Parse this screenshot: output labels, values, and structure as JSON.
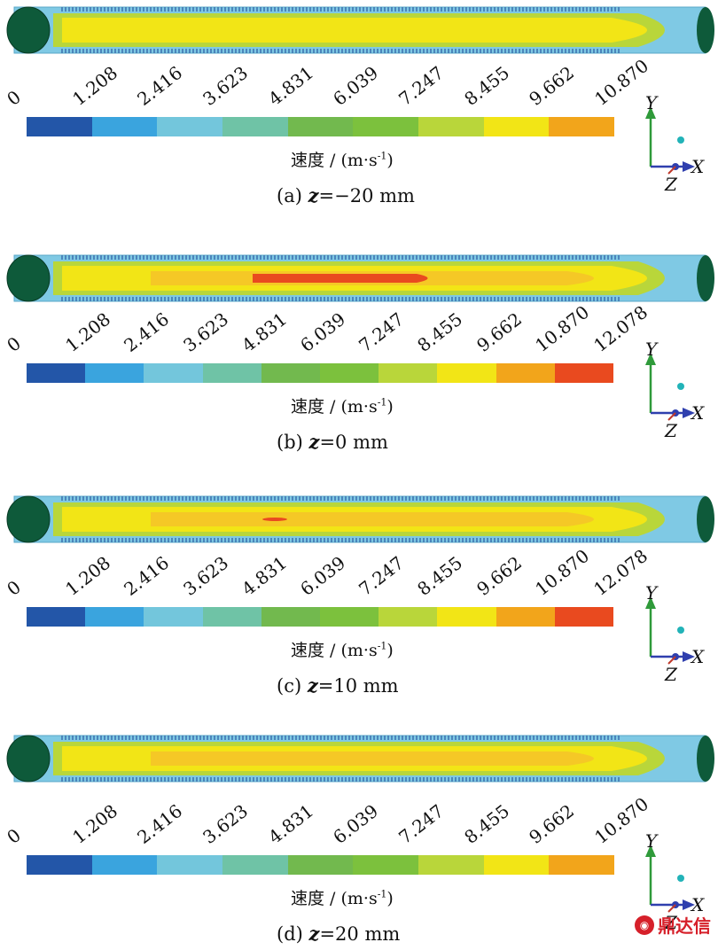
{
  "unit_label": "速度 / (m·s",
  "unit_sup": "-1",
  "unit_close": ")",
  "axes": {
    "x": "X",
    "y": "Y",
    "z": "Z"
  },
  "colors": {
    "c1": "#2356a8",
    "c2": "#3aa4de",
    "c3": "#73c6dc",
    "c4": "#6fc3a6",
    "c5": "#72b94e",
    "c6": "#7cc13d",
    "c7": "#b9d63a",
    "c8": "#f2e516",
    "c9": "#f2a51b",
    "c10": "#e94a1f"
  },
  "panels": [
    {
      "caption_prefix": "(a) ",
      "caption_var": "z",
      "caption_value": "=−20 mm",
      "ticks": [
        "0",
        "1.208",
        "2.416",
        "3.623",
        "4.831",
        "6.039",
        "7.247",
        "8.455",
        "9.662",
        "10.870"
      ],
      "hot_core": false
    },
    {
      "caption_prefix": "(b) ",
      "caption_var": "z",
      "caption_value": "=0 mm",
      "ticks": [
        "0",
        "1.208",
        "2.416",
        "3.623",
        "4.831",
        "6.039",
        "7.247",
        "8.455",
        "9.662",
        "10.870",
        "12.078"
      ],
      "hot_core": true
    },
    {
      "caption_prefix": "(c) ",
      "caption_var": "z",
      "caption_value": "=10 mm",
      "ticks": [
        "0",
        "1.208",
        "2.416",
        "3.623",
        "4.831",
        "6.039",
        "7.247",
        "8.455",
        "9.662",
        "10.870",
        "12.078"
      ],
      "hot_core": false
    },
    {
      "caption_prefix": "(d) ",
      "caption_var": "z",
      "caption_value": "=20 mm",
      "ticks": [
        "0",
        "1.208",
        "2.416",
        "3.623",
        "4.831",
        "6.039",
        "7.247",
        "8.455",
        "9.662",
        "10.870"
      ],
      "hot_core": false
    }
  ],
  "watermark": "鼎达信"
}
